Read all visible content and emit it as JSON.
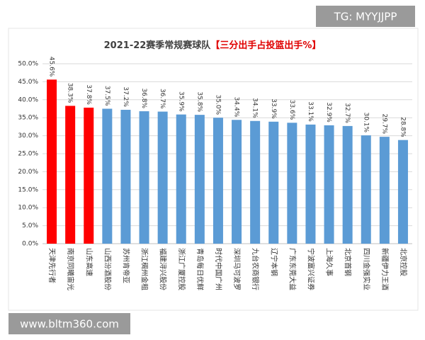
{
  "watermarks": [
    "TG: MYYJJPP",
    "www.bltm360.com"
  ],
  "chart_data": {
    "type": "bar",
    "title": [
      "2021-22赛季常规赛球队",
      "【三分出手占投篮出手%】"
    ],
    "categories": [
      "天津先行者",
      "南京同曦宙光",
      "山东高速",
      "山西汾酒股份",
      "苏州肯帝亚",
      "浙江稠州金租",
      "福建浔兴股份",
      "浙江广厦控股",
      "青岛每日优鲜",
      "时代中国广州",
      "深圳马可波罗",
      "九台农商银行",
      "辽宁本钢",
      "广东东莞大益",
      "宁波富兴证券",
      "上海久事",
      "北京首钢",
      "四川金强实业",
      "新疆伊力王酒",
      "北京控股"
    ],
    "values": [
      45.6,
      38.3,
      37.8,
      37.5,
      37.2,
      36.8,
      36.7,
      35.9,
      35.8,
      35.0,
      34.4,
      34.1,
      33.9,
      33.6,
      33.1,
      32.9,
      32.7,
      30.1,
      29.7,
      28.8
    ],
    "value_labels": [
      "45.6%",
      "38.3%",
      "37.8%",
      "37.5%",
      "37.2%",
      "36.8%",
      "36.7%",
      "35.9%",
      "35.8%",
      "35.0%",
      "34.4%",
      "34.1%",
      "33.9%",
      "33.6%",
      "33.1%",
      "32.9%",
      "32.7%",
      "30.1%",
      "29.7%",
      "28.8%"
    ],
    "colors": [
      "#ff0000",
      "#ff0000",
      "#ff0000",
      "#5b9bd5",
      "#5b9bd5",
      "#5b9bd5",
      "#5b9bd5",
      "#5b9bd5",
      "#5b9bd5",
      "#5b9bd5",
      "#5b9bd5",
      "#5b9bd5",
      "#5b9bd5",
      "#5b9bd5",
      "#5b9bd5",
      "#5b9bd5",
      "#5b9bd5",
      "#5b9bd5",
      "#5b9bd5",
      "#5b9bd5"
    ],
    "ylim": [
      0,
      50
    ],
    "yticks": [
      {
        "value": 0,
        "label": "0.0%"
      },
      {
        "value": 5,
        "label": "5.0%"
      },
      {
        "value": 10,
        "label": "10.0%"
      },
      {
        "value": 15,
        "label": "15.0%"
      },
      {
        "value": 20,
        "label": "20.0%"
      },
      {
        "value": 25,
        "label": "25.0%"
      },
      {
        "value": 30,
        "label": "30.0%"
      },
      {
        "value": 35,
        "label": "35.0%"
      },
      {
        "value": 40,
        "label": "40.0%"
      },
      {
        "value": 45,
        "label": "45.0%"
      },
      {
        "value": 50,
        "label": "50.0%"
      }
    ],
    "grid": true
  }
}
